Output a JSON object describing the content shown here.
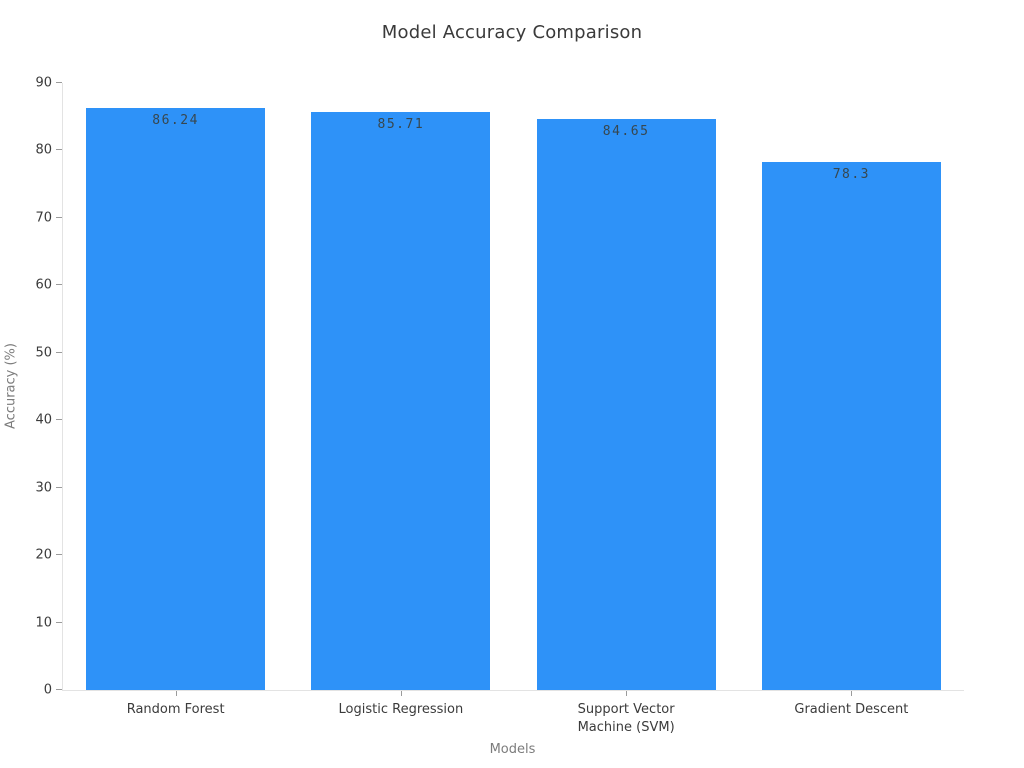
{
  "chart_data": {
    "type": "bar",
    "title": "Model Accuracy Comparison",
    "xlabel": "Models",
    "ylabel": "Accuracy (%)",
    "categories": [
      "Random Forest",
      "Logistic Regression",
      "Support Vector Machine (SVM)",
      "Gradient Descent"
    ],
    "category_label_lines": [
      [
        "Random Forest"
      ],
      [
        "Logistic Regression"
      ],
      [
        "Support Vector",
        "Machine (SVM)"
      ],
      [
        "Gradient Descent"
      ]
    ],
    "values": [
      86.24,
      85.71,
      84.65,
      78.3
    ],
    "value_labels": [
      "86.24",
      "85.71",
      "84.65",
      "78.3"
    ],
    "ylim": [
      0,
      90
    ],
    "yticks": [
      0,
      10,
      20,
      30,
      40,
      50,
      60,
      70,
      80,
      90
    ],
    "grid": false,
    "legend": null,
    "colors": {
      "bar": "#2e92f8",
      "value_label": "#37474f",
      "tick_label": "#3b3b3b",
      "axis_title": "#7c7c7c",
      "axis_line": "#e3e3e3",
      "tick_mark": "#9b9b9b",
      "title": "#3a3a3a",
      "background": "#ffffff"
    },
    "bar_width_fraction": 0.795
  }
}
